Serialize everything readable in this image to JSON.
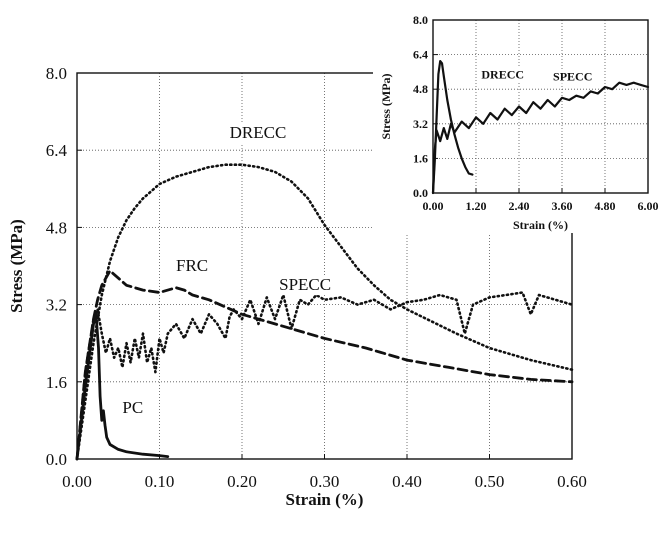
{
  "chart_data": [
    {
      "type": "line",
      "title": "",
      "xlabel": "Strain (%)",
      "ylabel": "Stress (MPa)",
      "xlim": [
        0,
        0.6
      ],
      "ylim": [
        0,
        8.0
      ],
      "xticks": [
        "0.00",
        "0.10",
        "0.20",
        "0.30",
        "0.40",
        "0.50",
        "0.60"
      ],
      "yticks": [
        "0.0",
        "1.6",
        "3.2",
        "4.8",
        "6.4",
        "8.0"
      ],
      "grid": true,
      "series": [
        {
          "name": "DRECC",
          "style": "dotted",
          "label_at": [
            0.185,
            6.65
          ],
          "points": [
            [
              0,
              0
            ],
            [
              0.01,
              1.2
            ],
            [
              0.02,
              2.4
            ],
            [
              0.03,
              3.4
            ],
            [
              0.04,
              4.1
            ],
            [
              0.05,
              4.6
            ],
            [
              0.06,
              4.95
            ],
            [
              0.07,
              5.2
            ],
            [
              0.08,
              5.4
            ],
            [
              0.09,
              5.55
            ],
            [
              0.1,
              5.7
            ],
            [
              0.12,
              5.85
            ],
            [
              0.14,
              5.95
            ],
            [
              0.16,
              6.05
            ],
            [
              0.18,
              6.1
            ],
            [
              0.2,
              6.1
            ],
            [
              0.22,
              6.05
            ],
            [
              0.24,
              5.95
            ],
            [
              0.26,
              5.75
            ],
            [
              0.28,
              5.4
            ],
            [
              0.3,
              4.85
            ],
            [
              0.32,
              4.4
            ],
            [
              0.34,
              3.95
            ],
            [
              0.36,
              3.6
            ],
            [
              0.38,
              3.3
            ],
            [
              0.4,
              3.1
            ],
            [
              0.43,
              2.85
            ],
            [
              0.46,
              2.6
            ],
            [
              0.5,
              2.3
            ],
            [
              0.55,
              2.05
            ],
            [
              0.6,
              1.85
            ]
          ]
        },
        {
          "name": "FRC",
          "style": "dashed",
          "label_at": [
            0.12,
            3.9
          ],
          "points": [
            [
              0,
              0
            ],
            [
              0.01,
              1.8
            ],
            [
              0.02,
              2.9
            ],
            [
              0.025,
              3.3
            ],
            [
              0.03,
              3.6
            ],
            [
              0.04,
              3.9
            ],
            [
              0.05,
              3.75
            ],
            [
              0.06,
              3.6
            ],
            [
              0.08,
              3.5
            ],
            [
              0.1,
              3.45
            ],
            [
              0.12,
              3.55
            ],
            [
              0.13,
              3.5
            ],
            [
              0.14,
              3.4
            ],
            [
              0.16,
              3.3
            ],
            [
              0.2,
              3.0
            ],
            [
              0.25,
              2.75
            ],
            [
              0.3,
              2.5
            ],
            [
              0.35,
              2.3
            ],
            [
              0.4,
              2.05
            ],
            [
              0.45,
              1.9
            ],
            [
              0.5,
              1.75
            ],
            [
              0.55,
              1.65
            ],
            [
              0.6,
              1.6
            ]
          ]
        },
        {
          "name": "SPECC",
          "style": "dotted",
          "label_at": [
            0.245,
            3.5
          ],
          "points": [
            [
              0,
              0
            ],
            [
              0.01,
              1.8
            ],
            [
              0.02,
              2.9
            ],
            [
              0.025,
              3.1
            ],
            [
              0.03,
              2.6
            ],
            [
              0.035,
              2.2
            ],
            [
              0.04,
              2.5
            ],
            [
              0.045,
              2.1
            ],
            [
              0.05,
              2.3
            ],
            [
              0.055,
              1.9
            ],
            [
              0.06,
              2.4
            ],
            [
              0.065,
              2.0
            ],
            [
              0.07,
              2.5
            ],
            [
              0.075,
              2.1
            ],
            [
              0.08,
              2.6
            ],
            [
              0.085,
              2.0
            ],
            [
              0.09,
              2.3
            ],
            [
              0.095,
              1.8
            ],
            [
              0.1,
              2.5
            ],
            [
              0.105,
              2.2
            ],
            [
              0.11,
              2.6
            ],
            [
              0.12,
              2.8
            ],
            [
              0.13,
              2.5
            ],
            [
              0.14,
              2.9
            ],
            [
              0.15,
              2.6
            ],
            [
              0.16,
              3.0
            ],
            [
              0.17,
              2.8
            ],
            [
              0.18,
              2.5
            ],
            [
              0.185,
              2.95
            ],
            [
              0.19,
              3.1
            ],
            [
              0.2,
              2.9
            ],
            [
              0.21,
              3.3
            ],
            [
              0.22,
              2.8
            ],
            [
              0.23,
              3.35
            ],
            [
              0.24,
              2.9
            ],
            [
              0.25,
              3.4
            ],
            [
              0.26,
              2.7
            ],
            [
              0.27,
              3.3
            ],
            [
              0.28,
              3.2
            ],
            [
              0.29,
              3.4
            ],
            [
              0.3,
              3.3
            ],
            [
              0.32,
              3.35
            ],
            [
              0.34,
              3.2
            ],
            [
              0.36,
              3.3
            ],
            [
              0.38,
              3.1
            ],
            [
              0.4,
              3.25
            ],
            [
              0.42,
              3.3
            ],
            [
              0.44,
              3.4
            ],
            [
              0.46,
              3.3
            ],
            [
              0.47,
              2.6
            ],
            [
              0.48,
              3.2
            ],
            [
              0.5,
              3.35
            ],
            [
              0.52,
              3.4
            ],
            [
              0.54,
              3.45
            ],
            [
              0.55,
              3.0
            ],
            [
              0.56,
              3.4
            ],
            [
              0.58,
              3.3
            ],
            [
              0.6,
              3.2
            ]
          ]
        },
        {
          "name": "PC",
          "style": "solid",
          "label_at": [
            0.055,
            0.95
          ],
          "points": [
            [
              0,
              0
            ],
            [
              0.01,
              1.5
            ],
            [
              0.02,
              2.8
            ],
            [
              0.023,
              3.0
            ],
            [
              0.026,
              2.3
            ],
            [
              0.028,
              1.3
            ],
            [
              0.03,
              0.8
            ],
            [
              0.032,
              1.0
            ],
            [
              0.034,
              0.7
            ],
            [
              0.036,
              0.45
            ],
            [
              0.04,
              0.3
            ],
            [
              0.05,
              0.2
            ],
            [
              0.06,
              0.15
            ],
            [
              0.08,
              0.1
            ],
            [
              0.1,
              0.07
            ],
            [
              0.11,
              0.05
            ]
          ]
        }
      ]
    },
    {
      "type": "line",
      "title": "",
      "xlabel": "Strain (%)",
      "ylabel": "Stress (MPa)",
      "xlim": [
        0,
        6.0
      ],
      "ylim": [
        0,
        8.0
      ],
      "xticks": [
        "0.00",
        "1.20",
        "2.40",
        "3.60",
        "4.80",
        "6.00"
      ],
      "yticks": [
        "0.0",
        "1.6",
        "3.2",
        "4.8",
        "6.4",
        "8.0"
      ],
      "grid": true,
      "series": [
        {
          "name": "DRECC",
          "style": "solid",
          "label_at": [
            1.35,
            5.3
          ],
          "points": [
            [
              0,
              0
            ],
            [
              0.05,
              1.5
            ],
            [
              0.1,
              3.5
            ],
            [
              0.15,
              5.5
            ],
            [
              0.2,
              6.1
            ],
            [
              0.25,
              6.0
            ],
            [
              0.3,
              5.4
            ],
            [
              0.4,
              4.3
            ],
            [
              0.5,
              3.4
            ],
            [
              0.6,
              2.7
            ],
            [
              0.7,
              2.1
            ],
            [
              0.8,
              1.6
            ],
            [
              0.9,
              1.2
            ],
            [
              1.0,
              0.9
            ],
            [
              1.1,
              0.85
            ]
          ]
        },
        {
          "name": "SPECC",
          "style": "solid",
          "label_at": [
            3.35,
            5.2
          ],
          "points": [
            [
              0,
              0
            ],
            [
              0.05,
              2.0
            ],
            [
              0.1,
              2.9
            ],
            [
              0.2,
              2.4
            ],
            [
              0.3,
              3.0
            ],
            [
              0.4,
              2.5
            ],
            [
              0.5,
              3.2
            ],
            [
              0.6,
              2.8
            ],
            [
              0.8,
              3.3
            ],
            [
              1.0,
              3.0
            ],
            [
              1.2,
              3.5
            ],
            [
              1.4,
              3.2
            ],
            [
              1.6,
              3.7
            ],
            [
              1.8,
              3.4
            ],
            [
              2.0,
              3.9
            ],
            [
              2.2,
              3.6
            ],
            [
              2.4,
              4.0
            ],
            [
              2.6,
              3.7
            ],
            [
              2.8,
              4.2
            ],
            [
              3.0,
              3.9
            ],
            [
              3.2,
              4.3
            ],
            [
              3.4,
              4.0
            ],
            [
              3.6,
              4.4
            ],
            [
              3.8,
              4.3
            ],
            [
              4.0,
              4.5
            ],
            [
              4.2,
              4.4
            ],
            [
              4.4,
              4.7
            ],
            [
              4.6,
              4.6
            ],
            [
              4.8,
              4.9
            ],
            [
              5.0,
              4.8
            ],
            [
              5.2,
              5.1
            ],
            [
              5.4,
              5.0
            ],
            [
              5.6,
              5.1
            ],
            [
              5.8,
              5.0
            ],
            [
              6.0,
              4.9
            ]
          ]
        }
      ]
    }
  ]
}
